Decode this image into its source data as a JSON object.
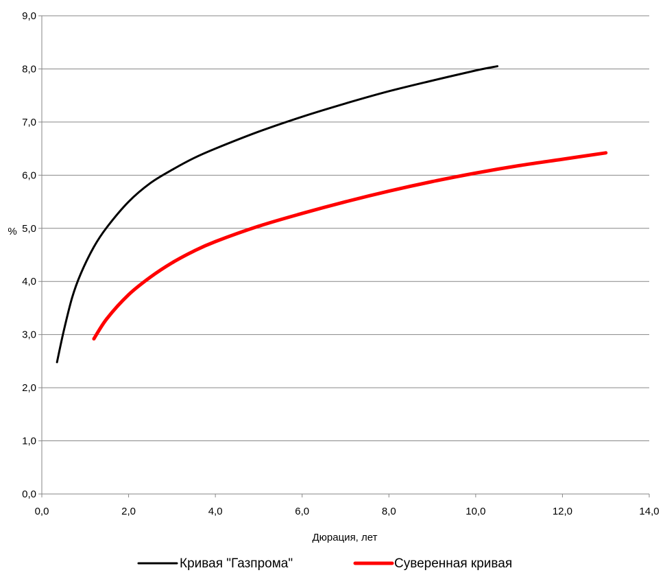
{
  "chart_data": {
    "type": "line",
    "xlabel": "Дюрация, лет",
    "ylabel": "%",
    "xlim": [
      0,
      14
    ],
    "ylim": [
      0,
      9
    ],
    "x_ticks": [
      "0,0",
      "2,0",
      "4,0",
      "6,0",
      "8,0",
      "10,0",
      "12,0",
      "14,0"
    ],
    "y_ticks": [
      "0,0",
      "1,0",
      "2,0",
      "3,0",
      "4,0",
      "5,0",
      "6,0",
      "7,0",
      "8,0",
      "9,0"
    ],
    "grid": "horizontal",
    "legend": "bottom",
    "series": [
      {
        "name": "Кривая \"Газпрома\"",
        "color": "#000000",
        "x": [
          0.35,
          0.5,
          0.7,
          0.9,
          1.2,
          1.5,
          2.0,
          2.5,
          3.0,
          3.5,
          4.0,
          5.0,
          6.0,
          7.0,
          8.0,
          9.0,
          10.0,
          10.5
        ],
        "y": [
          2.48,
          3.05,
          3.7,
          4.15,
          4.65,
          5.02,
          5.5,
          5.85,
          6.1,
          6.32,
          6.5,
          6.82,
          7.1,
          7.35,
          7.58,
          7.78,
          7.97,
          8.05
        ]
      },
      {
        "name": "Суверенная кривая",
        "color": "#ff0000",
        "x": [
          1.2,
          1.5,
          2.0,
          2.5,
          3.0,
          3.5,
          4.0,
          5.0,
          6.0,
          7.0,
          8.0,
          9.0,
          10.0,
          11.0,
          12.0,
          13.0
        ],
        "y": [
          2.92,
          3.3,
          3.75,
          4.08,
          4.35,
          4.57,
          4.75,
          5.04,
          5.28,
          5.5,
          5.7,
          5.88,
          6.04,
          6.18,
          6.3,
          6.42
        ]
      }
    ]
  }
}
